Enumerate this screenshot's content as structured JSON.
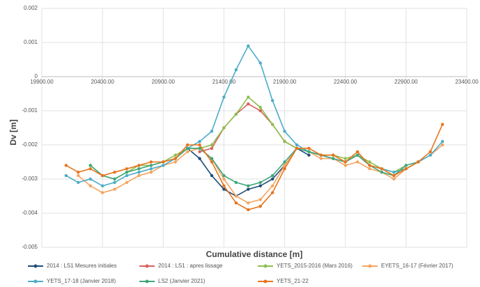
{
  "chart_data": {
    "type": "line",
    "xlabel": "Cumulative distance [m]",
    "ylabel": "Dv [m]",
    "xlim": [
      19900,
      23400
    ],
    "xticks": [
      {
        "value": 19900,
        "label": "19900.00"
      },
      {
        "value": 20400,
        "label": "20400.00"
      },
      {
        "value": 20900,
        "label": "20900.00"
      },
      {
        "value": 21400,
        "label": "21400.00"
      },
      {
        "value": 21900,
        "label": "21900.00"
      },
      {
        "value": 22400,
        "label": "22400.00"
      },
      {
        "value": 22900,
        "label": "22900.00"
      },
      {
        "value": 23400,
        "label": "23400.00"
      }
    ],
    "ylim": [
      -0.005,
      0.002
    ],
    "yticks": [
      0.002,
      0.001,
      0,
      -0.001,
      -0.002,
      -0.003,
      -0.004,
      -0.005
    ],
    "grid": true,
    "x": [
      20100,
      20200,
      20300,
      20400,
      20500,
      20600,
      20700,
      20800,
      20900,
      21000,
      21100,
      21200,
      21300,
      21400,
      21500,
      21600,
      21700,
      21800,
      21900,
      22000,
      22100,
      22200,
      22300,
      22400,
      22500,
      22600,
      22700,
      22800,
      22900,
      23000,
      23100,
      23200
    ],
    "series": [
      {
        "name": "2014 : LS1 Mesures initiales",
        "color": "#1f4e79",
        "values": [
          null,
          null,
          null,
          null,
          null,
          null,
          null,
          null,
          null,
          null,
          -0.0021,
          -0.0024,
          -0.0029,
          -0.0033,
          -0.0035,
          -0.0033,
          -0.0032,
          -0.003,
          -0.0026,
          -0.0021,
          -0.0023,
          null,
          null,
          null,
          null,
          null,
          null,
          null,
          null,
          null,
          null,
          null
        ]
      },
      {
        "name": "2014 : LS1 : apres lissage",
        "color": "#d9605a",
        "values": [
          null,
          null,
          null,
          null,
          null,
          null,
          null,
          null,
          null,
          null,
          null,
          -0.0022,
          -0.0021,
          -0.0015,
          -0.0011,
          -0.0008,
          -0.001,
          -0.0014,
          -0.0019,
          -0.0021,
          null,
          null,
          null,
          null,
          null,
          null,
          null,
          null,
          null,
          null,
          null,
          null
        ]
      },
      {
        "name": "YETS_2015-2016 (Mars 2016)",
        "color": "#8dbf4f",
        "values": [
          null,
          null,
          -0.0026,
          -0.0029,
          -0.003,
          -0.0028,
          -0.0026,
          -0.0026,
          -0.0025,
          -0.0023,
          -0.0021,
          -0.0021,
          -0.002,
          -0.0015,
          -0.0011,
          -0.0006,
          -0.0009,
          -0.0014,
          -0.0019,
          -0.0021,
          -0.0022,
          -0.0023,
          -0.0023,
          -0.0024,
          -0.0023,
          -0.0025,
          -0.0027,
          -0.0028,
          -0.0026,
          null,
          null,
          null
        ]
      },
      {
        "name": "EYETS_16-17 (Février 2017)",
        "color": "#f4a460",
        "values": [
          null,
          -0.0029,
          -0.0032,
          -0.0034,
          -0.0033,
          -0.0031,
          -0.0029,
          -0.0028,
          -0.0026,
          -0.0025,
          -0.0022,
          -0.0021,
          -0.0024,
          -0.003,
          -0.0035,
          -0.0037,
          -0.0036,
          -0.0032,
          -0.0026,
          -0.0021,
          -0.0022,
          -0.0024,
          -0.0024,
          -0.0026,
          -0.0025,
          -0.0027,
          -0.0028,
          -0.003,
          -0.0027,
          -0.0025,
          -0.0023,
          -0.002
        ]
      },
      {
        "name": "YETS_17-18 (Janvier 2018)",
        "color": "#4bacc6",
        "values": [
          -0.0029,
          -0.0031,
          -0.003,
          -0.0032,
          -0.0031,
          -0.0029,
          -0.0028,
          -0.0027,
          -0.0026,
          -0.0024,
          -0.0021,
          -0.0019,
          -0.0016,
          -0.0006,
          0.0002,
          0.0009,
          0.0004,
          -0.0007,
          -0.0016,
          -0.002,
          -0.0022,
          -0.0023,
          -0.0024,
          -0.0025,
          -0.0023,
          -0.0026,
          -0.0027,
          -0.0028,
          -0.0027,
          -0.0025,
          -0.0023,
          -0.0019
        ]
      },
      {
        "name": "LS2 (Janvier 2021)",
        "color": "#3fa67a",
        "values": [
          null,
          null,
          -0.0026,
          -0.0029,
          -0.003,
          -0.0028,
          -0.0027,
          -0.0026,
          -0.0025,
          -0.0024,
          -0.0021,
          -0.0021,
          -0.0024,
          -0.0029,
          -0.0031,
          -0.0032,
          -0.0031,
          -0.0029,
          -0.0025,
          -0.0021,
          -0.0022,
          -0.0023,
          -0.0024,
          -0.0025,
          -0.0023,
          -0.0026,
          -0.0028,
          -0.0029,
          -0.0026,
          -0.0025,
          null,
          null
        ]
      },
      {
        "name": "YETS_21-22",
        "color": "#e8731c",
        "values": [
          -0.0026,
          -0.0028,
          -0.0027,
          -0.0029,
          -0.0028,
          -0.0027,
          -0.0026,
          -0.0025,
          -0.0025,
          -0.0024,
          -0.002,
          -0.002,
          -0.0025,
          -0.0032,
          -0.0037,
          -0.0039,
          -0.0038,
          -0.0034,
          -0.0027,
          -0.0021,
          -0.0021,
          -0.0023,
          -0.0023,
          -0.0025,
          -0.0022,
          -0.0026,
          -0.0027,
          -0.0029,
          -0.0027,
          -0.0025,
          -0.0022,
          -0.0014
        ]
      }
    ]
  }
}
